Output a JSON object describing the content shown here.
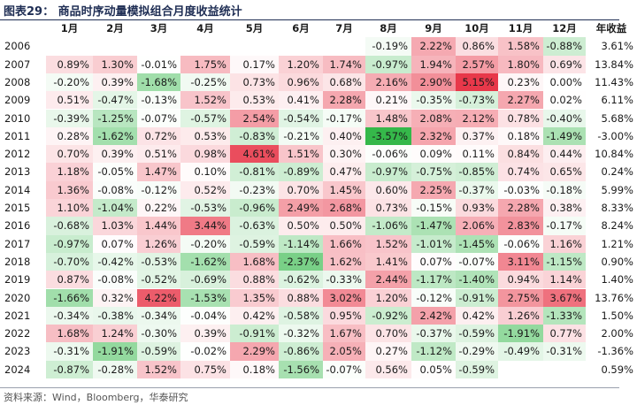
{
  "title": "图表29：  商品时序动量模拟组合月度收益统计",
  "headers": [
    "1月",
    "2月",
    "3月",
    "4月",
    "5月",
    "6月",
    "7月",
    "8月",
    "9月",
    "10月",
    "11月",
    "12月",
    "年收益"
  ],
  "rows": [
    {
      "year": "2006",
      "months": [
        null,
        null,
        null,
        null,
        null,
        null,
        null,
        -0.19,
        2.22,
        0.86,
        1.58,
        -0.88
      ],
      "labels": [
        "",
        "",
        "",
        "",
        "",
        "",
        "",
        "-0.19%",
        "2.22%",
        "0.86%",
        "1.58%",
        "-0.88%"
      ],
      "annual": "3.61%"
    },
    {
      "year": "2007",
      "months": [
        0.89,
        1.3,
        -0.01,
        1.75,
        0.17,
        1.2,
        1.74,
        -0.97,
        1.94,
        2.57,
        1.8,
        0.69
      ],
      "labels": [
        "0.89%",
        "1.30%",
        "-0.01%",
        "1.75%",
        "0.17%",
        "1.20%",
        "1.74%",
        "-0.97%",
        "1.94%",
        "2.57%",
        "1.80%",
        "0.69%"
      ],
      "annual": "13.84%"
    },
    {
      "year": "2008",
      "months": [
        -0.2,
        0.39,
        -1.68,
        -0.25,
        0.73,
        0.96,
        0.68,
        2.16,
        2.9,
        5.15,
        0.23,
        0.0
      ],
      "labels": [
        "-0.20%",
        "0.39%",
        "-1.68%",
        "-0.25%",
        "0.73%",
        "0.96%",
        "0.68%",
        "2.16%",
        "2.90%",
        "5.15%",
        "0.23%",
        "0.00%"
      ],
      "annual": "11.43%"
    },
    {
      "year": "2009",
      "months": [
        0.51,
        -0.47,
        -0.13,
        1.52,
        0.53,
        0.41,
        2.28,
        0.21,
        -0.35,
        -0.73,
        2.27,
        0.02
      ],
      "labels": [
        "0.51%",
        "-0.47%",
        "-0.13%",
        "1.52%",
        "0.53%",
        "0.41%",
        "2.28%",
        "0.21%",
        "-0.35%",
        "-0.73%",
        "2.27%",
        "0.02%"
      ],
      "annual": "6.11%"
    },
    {
      "year": "2010",
      "months": [
        -0.39,
        -1.25,
        -0.07,
        -0.57,
        2.54,
        -0.54,
        -0.17,
        1.48,
        2.08,
        2.12,
        0.78,
        -0.4
      ],
      "labels": [
        "-0.39%",
        "-1.25%",
        "-0.07%",
        "-0.57%",
        "2.54%",
        "-0.54%",
        "-0.17%",
        "1.48%",
        "2.08%",
        "2.12%",
        "0.78%",
        "-0.40%"
      ],
      "annual": "5.68%"
    },
    {
      "year": "2011",
      "months": [
        0.28,
        -1.62,
        0.72,
        0.53,
        -0.83,
        -0.21,
        0.4,
        -3.57,
        2.32,
        0.37,
        0.18,
        -1.49
      ],
      "labels": [
        "0.28%",
        "-1.62%",
        "0.72%",
        "0.53%",
        "-0.83%",
        "-0.21%",
        "0.40%",
        "-3.57%",
        "2.32%",
        "0.37%",
        "0.18%",
        "-1.49%"
      ],
      "annual": "-3.00%"
    },
    {
      "year": "2012",
      "months": [
        0.7,
        0.39,
        0.51,
        0.98,
        4.61,
        1.51,
        0.3,
        -0.06,
        0.09,
        0.11,
        0.84,
        0.44
      ],
      "labels": [
        "0.70%",
        "0.39%",
        "0.51%",
        "0.98%",
        "4.61%",
        "1.51%",
        "0.30%",
        "-0.06%",
        "0.09%",
        "0.11%",
        "0.84%",
        "0.44%"
      ],
      "annual": "10.84%"
    },
    {
      "year": "2013",
      "months": [
        1.18,
        -0.05,
        1.47,
        0.1,
        -0.81,
        -0.89,
        0.47,
        -0.97,
        -0.75,
        -0.85,
        0.74,
        0.65
      ],
      "labels": [
        "1.18%",
        "-0.05%",
        "1.47%",
        "0.10%",
        "-0.81%",
        "-0.89%",
        "0.47%",
        "-0.97%",
        "-0.75%",
        "-0.85%",
        "0.74%",
        "0.65%"
      ],
      "annual": "0.24%"
    },
    {
      "year": "2014",
      "months": [
        1.36,
        -0.08,
        -0.12,
        0.52,
        -0.23,
        0.7,
        1.45,
        0.6,
        2.25,
        -0.37,
        -0.03,
        -0.18
      ],
      "labels": [
        "1.36%",
        "-0.08%",
        "-0.12%",
        "0.52%",
        "-0.23%",
        "0.70%",
        "1.45%",
        "0.60%",
        "2.25%",
        "-0.37%",
        "-0.03%",
        "-0.18%"
      ],
      "annual": "5.99%"
    },
    {
      "year": "2015",
      "months": [
        1.1,
        -1.04,
        0.22,
        -0.53,
        -0.96,
        2.49,
        2.68,
        0.73,
        -0.15,
        0.93,
        2.28,
        0.38
      ],
      "labels": [
        "1.10%",
        "-1.04%",
        "0.22%",
        "-0.53%",
        "-0.96%",
        "2.49%",
        "2.68%",
        "0.73%",
        "-0.15%",
        "0.93%",
        "2.28%",
        "0.38%"
      ],
      "annual": "8.33%"
    },
    {
      "year": "2016",
      "months": [
        -0.68,
        1.03,
        1.44,
        3.44,
        -0.63,
        0.5,
        0.5,
        -1.06,
        -1.47,
        2.06,
        2.83,
        -0.17
      ],
      "labels": [
        "-0.68%",
        "1.03%",
        "1.44%",
        "3.44%",
        "-0.63%",
        "0.50%",
        "0.50%",
        "-1.06%",
        "-1.47%",
        "2.06%",
        "2.83%",
        "-0.17%"
      ],
      "annual": "8.24%"
    },
    {
      "year": "2017",
      "months": [
        -0.97,
        0.07,
        1.26,
        -0.2,
        -0.59,
        -1.14,
        1.66,
        1.52,
        -1.01,
        -1.45,
        -0.06,
        1.16
      ],
      "labels": [
        "-0.97%",
        "0.07%",
        "1.26%",
        "-0.20%",
        "-0.59%",
        "-1.14%",
        "1.66%",
        "1.52%",
        "-1.01%",
        "-1.45%",
        "-0.06%",
        "1.16%"
      ],
      "annual": "1.21%"
    },
    {
      "year": "2018",
      "months": [
        -0.7,
        -0.42,
        -0.53,
        -1.62,
        1.68,
        -2.37,
        1.62,
        1.41,
        0.07,
        -0.07,
        3.11,
        -1.15
      ],
      "labels": [
        "-0.70%",
        "-0.42%",
        "-0.53%",
        "-1.62%",
        "1.68%",
        "-2.37%",
        "1.62%",
        "1.41%",
        "0.07%",
        "-0.07%",
        "3.11%",
        "-1.15%"
      ],
      "annual": "0.90%"
    },
    {
      "year": "2019",
      "months": [
        0.87,
        -0.08,
        -0.52,
        -0.69,
        0.88,
        -0.62,
        -0.33,
        2.44,
        -1.17,
        -1.4,
        0.94,
        1.14
      ],
      "labels": [
        "0.87%",
        "-0.08%",
        "-0.52%",
        "-0.69%",
        "0.88%",
        "-0.62%",
        "-0.33%",
        "2.44%",
        "-1.17%",
        "-1.40%",
        "0.94%",
        "1.14%"
      ],
      "annual": "1.40%"
    },
    {
      "year": "2020",
      "months": [
        -1.66,
        0.32,
        4.22,
        -1.53,
        1.35,
        0.88,
        3.02,
        1.2,
        -0.12,
        -0.91,
        2.75,
        3.67
      ],
      "labels": [
        "-1.66%",
        "0.32%",
        "4.22%",
        "-1.53%",
        "1.35%",
        "0.88%",
        "3.02%",
        "1.20%",
        "-0.12%",
        "-0.91%",
        "2.75%",
        "3.67%"
      ],
      "annual": "13.76%"
    },
    {
      "year": "2021",
      "months": [
        -0.34,
        -0.38,
        -0.34,
        -0.04,
        0.42,
        -0.58,
        0.95,
        -0.92,
        2.42,
        0.42,
        1.26,
        -1.33
      ],
      "labels": [
        "-0.34%",
        "-0.38%",
        "-0.34%",
        "-0.04%",
        "0.42%",
        "-0.58%",
        "0.95%",
        "-0.92%",
        "2.42%",
        "0.42%",
        "1.26%",
        "-1.33%"
      ],
      "annual": "1.50%"
    },
    {
      "year": "2022",
      "months": [
        1.68,
        1.24,
        -0.3,
        0.39,
        -0.91,
        -0.32,
        1.67,
        0.7,
        -0.37,
        -0.59,
        -1.91,
        0.77
      ],
      "labels": [
        "1.68%",
        "1.24%",
        "-0.30%",
        "0.39%",
        "-0.91%",
        "-0.32%",
        "1.67%",
        "0.70%",
        "-0.37%",
        "-0.59%",
        "-1.91%",
        "0.77%"
      ],
      "annual": "2.00%"
    },
    {
      "year": "2023",
      "months": [
        -0.31,
        -1.91,
        -0.59,
        -0.02,
        2.29,
        -0.86,
        2.05,
        0.27,
        -1.12,
        -0.29,
        -0.49,
        -0.31
      ],
      "labels": [
        "-0.31%",
        "-1.91%",
        "-0.59%",
        "-0.02%",
        "2.29%",
        "-0.86%",
        "2.05%",
        "0.27%",
        "-1.12%",
        "-0.29%",
        "-0.49%",
        "-0.31%"
      ],
      "annual": "-1.36%"
    },
    {
      "year": "2024",
      "months": [
        -0.87,
        -0.28,
        1.52,
        0.75,
        0.18,
        -1.56,
        -0.07,
        0.56,
        0.05,
        -0.59,
        null,
        null
      ],
      "labels": [
        "-0.87%",
        "-0.28%",
        "1.52%",
        "0.75%",
        "0.18%",
        "-1.56%",
        "-0.07%",
        "0.56%",
        "0.05%",
        "-0.59%",
        "",
        ""
      ],
      "annual": "0.59%"
    }
  ],
  "colors": {
    "positive_max": "#e8384a",
    "negative_max": "#35b84a",
    "neutral": "#ffffff",
    "title": "#1f2e54"
  },
  "color_scale": {
    "positive_saturate_at": 5.15,
    "negative_saturate_at": 3.57
  },
  "footer": "资料来源：Wind，Bloomberg，华泰研究"
}
